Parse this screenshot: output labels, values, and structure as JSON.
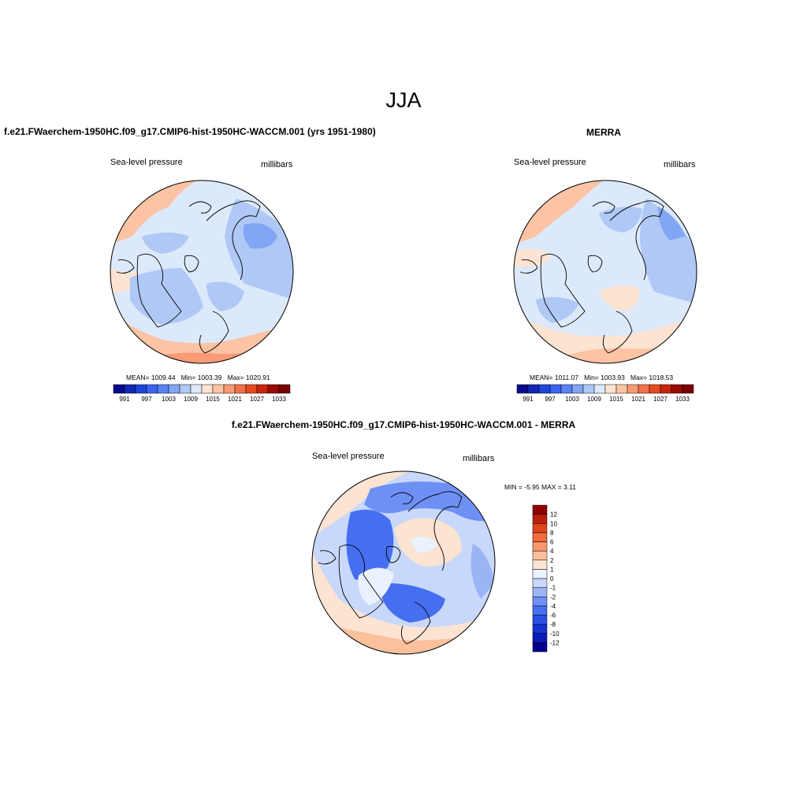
{
  "figure": {
    "title": "JJA",
    "panels": {
      "model": {
        "title": "f.e21.FWaerchem-1950HC.f09_g17.CMIP6-hist-1950HC-WACCM.001 (yrs 1951-1980)",
        "left_label": "Sea-level pressure",
        "right_label": "millibars",
        "stats": {
          "mean_label": "MEAN=",
          "mean": "1009.44",
          "min_label": "Min=",
          "min": "1003.39",
          "max_label": "Max=",
          "max": "1020.91"
        }
      },
      "obs": {
        "title": "MERRA",
        "left_label": "Sea-level pressure",
        "right_label": "millibars",
        "stats": {
          "mean_label": "MEAN=",
          "mean": "1011.07",
          "min_label": "Min=",
          "min": "1003.93",
          "max_label": "Max=",
          "max": "1018.53"
        }
      },
      "diff": {
        "title": "f.e21.FWaerchem-1950HC.f09_g17.CMIP6-hist-1950HC-WACCM.001 - MERRA",
        "left_label": "Sea-level pressure",
        "right_label": "millibars",
        "minmax": "MIN =  -5.95 MAX =   3.11"
      }
    }
  },
  "chart_data": [
    {
      "type": "heatmap",
      "projection": "north-polar-stereographic",
      "title": "f.e21.FWaerchem-1950HC.f09_g17.CMIP6-hist-1950HC-WACCM.001 (yrs 1951-1980)",
      "variable": "Sea-level pressure",
      "units": "millibars",
      "mean": 1009.44,
      "min": 1003.39,
      "max": 1020.91,
      "colorbar": {
        "orientation": "horizontal",
        "levels": [
          991,
          994,
          997,
          1000,
          1003,
          1006,
          1009,
          1012,
          1015,
          1018,
          1021,
          1024,
          1027,
          1030,
          1033
        ],
        "tick_labels": [
          "991",
          "997",
          "1003",
          "1009",
          "1015",
          "1021",
          "1027",
          "1033"
        ],
        "colors": [
          "#0a0a8c",
          "#1428b4",
          "#1e46dc",
          "#3c64f0",
          "#5a82f5",
          "#82a5f5",
          "#afc8f5",
          "#dce9fb",
          "#fde3d1",
          "#fcc3a5",
          "#f99a76",
          "#f2704a",
          "#e64a20",
          "#c8250d",
          "#9b0a05",
          "#7a0000"
        ]
      }
    },
    {
      "type": "heatmap",
      "projection": "north-polar-stereographic",
      "title": "MERRA",
      "variable": "Sea-level pressure",
      "units": "millibars",
      "mean": 1011.07,
      "min": 1003.93,
      "max": 1018.53,
      "colorbar": {
        "orientation": "horizontal",
        "levels": [
          991,
          994,
          997,
          1000,
          1003,
          1006,
          1009,
          1012,
          1015,
          1018,
          1021,
          1024,
          1027,
          1030,
          1033
        ],
        "tick_labels": [
          "991",
          "997",
          "1003",
          "1009",
          "1015",
          "1021",
          "1027",
          "1033"
        ],
        "colors": [
          "#0a0a8c",
          "#1428b4",
          "#1e46dc",
          "#3c64f0",
          "#5a82f5",
          "#82a5f5",
          "#afc8f5",
          "#dce9fb",
          "#fde3d1",
          "#fcc3a5",
          "#f99a76",
          "#f2704a",
          "#e64a20",
          "#c8250d",
          "#9b0a05",
          "#7a0000"
        ]
      }
    },
    {
      "type": "heatmap",
      "projection": "north-polar-stereographic",
      "title": "f.e21.FWaerchem-1950HC.f09_g17.CMIP6-hist-1950HC-WACCM.001 - MERRA",
      "variable": "Sea-level pressure",
      "units": "millibars",
      "min": -5.95,
      "max": 3.11,
      "colorbar": {
        "orientation": "vertical",
        "levels": [
          -12,
          -10,
          -8,
          -6,
          -4,
          -2,
          -1,
          0,
          1,
          2,
          4,
          6,
          8,
          10,
          12
        ],
        "tick_labels": [
          "-12",
          "-10",
          "-8",
          "-6",
          "-4",
          "-2",
          "-1",
          "0",
          "1",
          "2",
          "4",
          "6",
          "8",
          "10",
          "12"
        ],
        "colors": [
          "#000090",
          "#0a1ab4",
          "#1432d2",
          "#2850e6",
          "#466ef0",
          "#6e90f5",
          "#9ab4f5",
          "#c8d8fa",
          "#eaf2ff",
          "#fde3d1",
          "#fbc09c",
          "#f8966c",
          "#f06a3c",
          "#e0441a",
          "#b8200a",
          "#8c0000"
        ]
      }
    }
  ]
}
